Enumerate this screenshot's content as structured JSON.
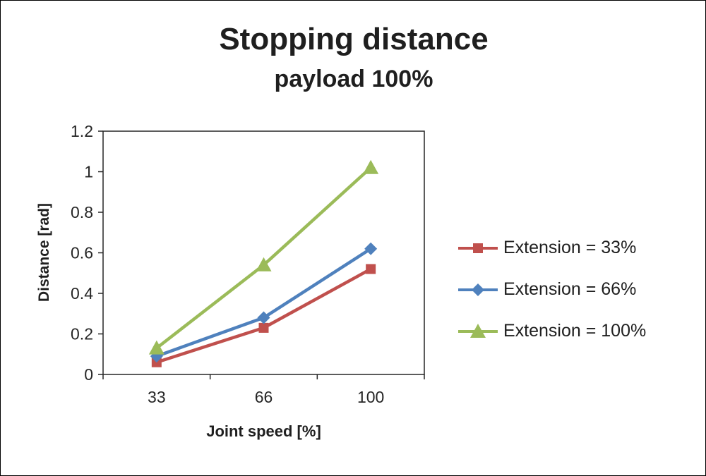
{
  "chart_data": {
    "type": "line",
    "title": "Stopping distance",
    "subtitle": "payload 100%",
    "xlabel": "Joint speed [%]",
    "ylabel": "Distance [rad]",
    "categories": [
      "33",
      "66",
      "100"
    ],
    "series": [
      {
        "name": "Extension = 33%",
        "color": "#C0504D",
        "marker": "square",
        "values": [
          0.06,
          0.23,
          0.52
        ]
      },
      {
        "name": "Extension = 66%",
        "color": "#4F81BD",
        "marker": "diamond",
        "values": [
          0.09,
          0.28,
          0.62
        ]
      },
      {
        "name": "Extension = 100%",
        "color": "#9BBB59",
        "marker": "triangle",
        "values": [
          0.13,
          0.54,
          1.02
        ]
      }
    ],
    "ylim": [
      0,
      1.2
    ],
    "ytick_labels": [
      "0",
      "0.2",
      "0.4",
      "0.6",
      "0.8",
      "1",
      "1.2"
    ],
    "ytick_values": [
      0,
      0.2,
      0.4,
      0.6,
      0.8,
      1,
      1.2
    ],
    "grid": false,
    "legend_position": "right",
    "axis_color": "#262626",
    "text_color": "#262626"
  }
}
